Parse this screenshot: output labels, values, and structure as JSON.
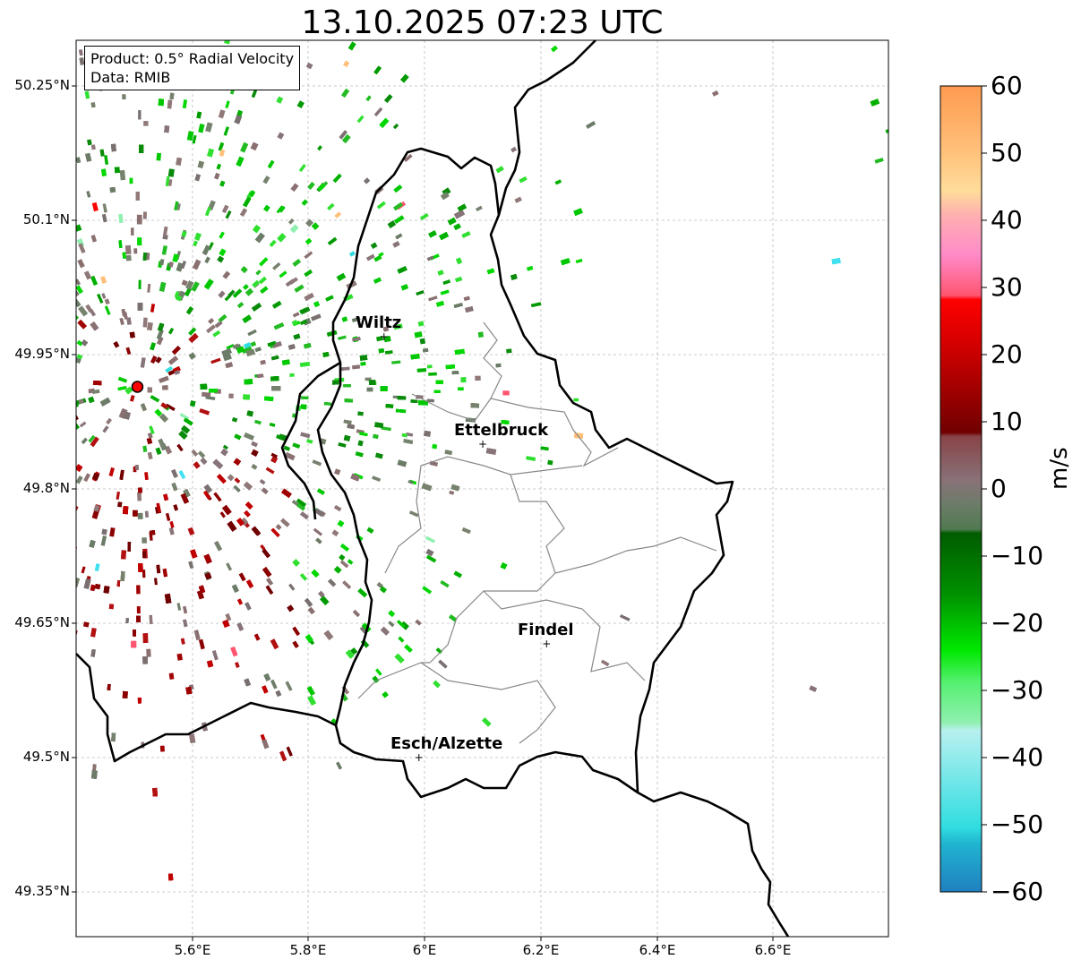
{
  "title": "13.10.2025 07:23 UTC",
  "info": {
    "product": "Product: 0.5° Radial Velocity",
    "data": "Data: RMIB"
  },
  "lat_labels": [
    "50.25°N",
    "50.1°N",
    "49.95°N",
    "49.8°N",
    "49.65°N",
    "49.5°N",
    "49.35°N"
  ],
  "lon_labels": [
    "5.6°E",
    "5.8°E",
    "6°E",
    "6.2°E",
    "6.4°E",
    "6.6°E"
  ],
  "cities": [
    {
      "name": "Wiltz",
      "lon": 5.93,
      "lat": 49.97
    },
    {
      "name": "Ettelbruck",
      "lon": 6.1,
      "lat": 49.85
    },
    {
      "name": "Findel",
      "lon": 6.21,
      "lat": 49.627
    },
    {
      "name": "Esch/Alzette",
      "lon": 5.99,
      "lat": 49.5
    }
  ],
  "radar": {
    "lon": 5.505,
    "lat": 49.914
  },
  "colorbar": {
    "label": "m/s",
    "ticks": [
      "60",
      "50",
      "40",
      "30",
      "20",
      "10",
      "0",
      "−10",
      "−20",
      "−30",
      "−40",
      "−50",
      "−60"
    ],
    "range": [
      -60,
      60
    ]
  },
  "colors": {
    "border": "#000000",
    "grid": "#bbbbbb",
    "radar_marker": "#ff0000"
  }
}
